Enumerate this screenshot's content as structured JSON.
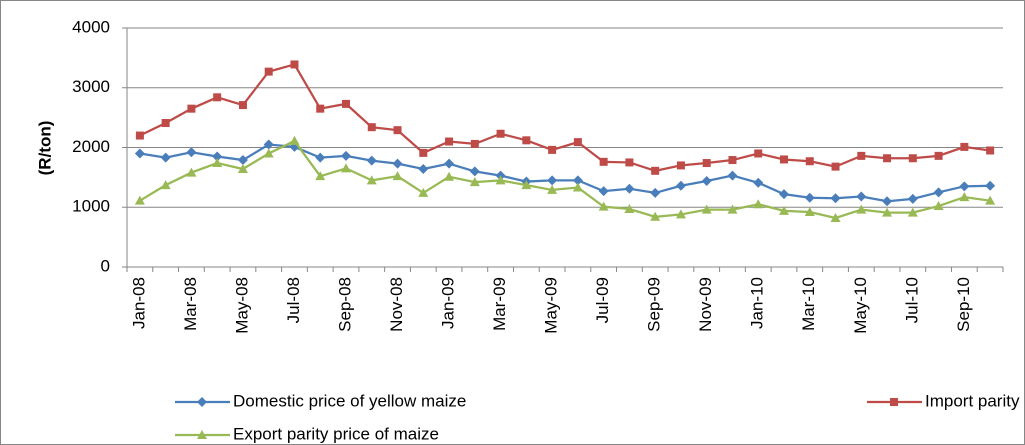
{
  "chart_data": {
    "type": "line",
    "y_label": "(R/ton)",
    "categories": [
      "Jan-08",
      null,
      "Mar-08",
      null,
      "May-08",
      null,
      "Jul-08",
      null,
      "Sep-08",
      null,
      "Nov-08",
      null,
      "Jan-09",
      null,
      "Mar-09",
      null,
      "May-09",
      null,
      "Jul-09",
      null,
      "Sep-09",
      null,
      "Nov-09",
      null,
      "Jan-10",
      null,
      "Mar-10",
      null,
      "May-10",
      null,
      "Jul-10",
      null,
      "Sep-10",
      null
    ],
    "series": [
      {
        "name": "Domestic price of yellow maize",
        "color": "#4a7ebb",
        "marker": "diamond",
        "values": [
          1900,
          1830,
          1920,
          1850,
          1790,
          2050,
          2010,
          1830,
          1860,
          1780,
          1730,
          1640,
          1730,
          1600,
          1530,
          1430,
          1450,
          1450,
          1270,
          1310,
          1240,
          1360,
          1440,
          1530,
          1410,
          1220,
          1160,
          1150,
          1180,
          1100,
          1140,
          1250,
          1350,
          1360
        ]
      },
      {
        "name": "Import parity price of maize",
        "color": "#be4b48",
        "marker": "square",
        "values": [
          2200,
          2410,
          2650,
          2840,
          2710,
          3270,
          3390,
          2650,
          2730,
          2340,
          2290,
          1910,
          2100,
          2060,
          2230,
          2120,
          1960,
          2090,
          1760,
          1750,
          1610,
          1700,
          1740,
          1790,
          1900,
          1800,
          1770,
          1680,
          1860,
          1820,
          1820,
          1860,
          2010,
          1950
        ]
      },
      {
        "name": "Export parity price of maize",
        "color": "#98b954",
        "marker": "triangle",
        "values": [
          1110,
          1370,
          1580,
          1740,
          1640,
          1900,
          2110,
          1520,
          1650,
          1450,
          1520,
          1240,
          1510,
          1420,
          1450,
          1370,
          1290,
          1330,
          1010,
          970,
          840,
          880,
          960,
          960,
          1050,
          940,
          920,
          820,
          960,
          910,
          910,
          1020,
          1170,
          1110
        ]
      }
    ],
    "ylim": [
      0,
      4000
    ],
    "yticks": [
      0,
      1000,
      2000,
      3000,
      4000
    ],
    "grid": true
  }
}
